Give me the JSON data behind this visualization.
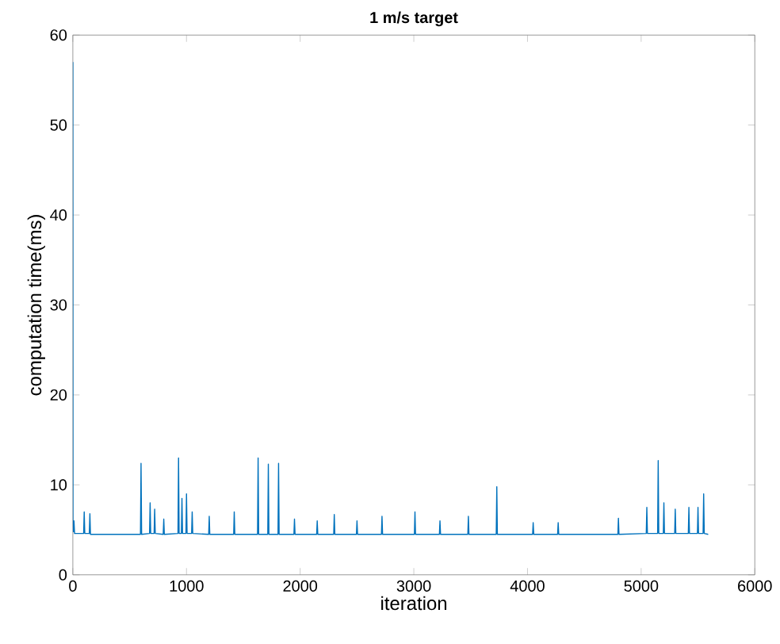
{
  "chart_data": {
    "type": "line",
    "title": "**1 m/s target**",
    "xlabel": "iteration",
    "ylabel": "computation time(ms)",
    "x": [
      0,
      1,
      5,
      10,
      15,
      95,
      100,
      105,
      145,
      150,
      155,
      595,
      600,
      605,
      675,
      680,
      685,
      715,
      720,
      725,
      795,
      800,
      805,
      925,
      930,
      935,
      955,
      960,
      965,
      995,
      1000,
      1005,
      1045,
      1050,
      1055,
      1195,
      1200,
      1205,
      1415,
      1420,
      1425,
      1625,
      1630,
      1635,
      1715,
      1720,
      1725,
      1805,
      1810,
      1815,
      1945,
      1950,
      1955,
      2145,
      2150,
      2155,
      2295,
      2300,
      2305,
      2495,
      2500,
      2505,
      2715,
      2720,
      2725,
      3005,
      3010,
      3015,
      3225,
      3230,
      3235,
      3475,
      3480,
      3485,
      3725,
      3730,
      3735,
      4045,
      4050,
      4055,
      4265,
      4270,
      4275,
      4795,
      4800,
      4805,
      5045,
      5050,
      5055,
      5145,
      5150,
      5155,
      5195,
      5200,
      5205,
      5295,
      5300,
      5305,
      5415,
      5420,
      5425,
      5495,
      5500,
      5505,
      5545,
      5550,
      5555,
      5590
    ],
    "values": [
      57,
      5.5,
      4.8,
      6,
      4.6,
      4.6,
      7,
      4.6,
      4.6,
      6.8,
      4.5,
      4.5,
      12.4,
      4.5,
      4.6,
      8,
      4.6,
      4.6,
      7.3,
      4.6,
      4.5,
      6.2,
      4.5,
      4.6,
      13,
      4.6,
      4.6,
      8.5,
      4.6,
      4.6,
      9,
      4.6,
      4.6,
      7,
      4.6,
      4.5,
      6.5,
      4.5,
      4.5,
      7,
      4.5,
      4.5,
      13,
      4.5,
      4.5,
      12.3,
      4.5,
      4.5,
      12.4,
      4.5,
      4.5,
      6.2,
      4.5,
      4.5,
      6,
      4.5,
      4.5,
      6.7,
      4.5,
      4.5,
      6,
      4.5,
      4.5,
      6.5,
      4.5,
      4.5,
      7,
      4.5,
      4.5,
      6,
      4.5,
      4.5,
      6.5,
      4.5,
      4.5,
      9.8,
      4.5,
      4.5,
      5.8,
      4.5,
      4.5,
      5.8,
      4.5,
      4.5,
      6.3,
      4.5,
      4.6,
      7.5,
      4.6,
      4.6,
      12.7,
      4.6,
      4.6,
      8,
      4.6,
      4.6,
      7.3,
      4.6,
      4.6,
      7.5,
      4.6,
      4.6,
      7.5,
      4.6,
      4.6,
      9,
      4.6,
      4.5
    ],
    "color": "#0072bd",
    "xlim": [
      0,
      6000
    ],
    "ylim": [
      0,
      60
    ],
    "xticks": [
      0,
      1000,
      2000,
      3000,
      4000,
      5000,
      6000
    ],
    "yticks": [
      0,
      10,
      20,
      30,
      40,
      50,
      60
    ],
    "grid": false
  }
}
